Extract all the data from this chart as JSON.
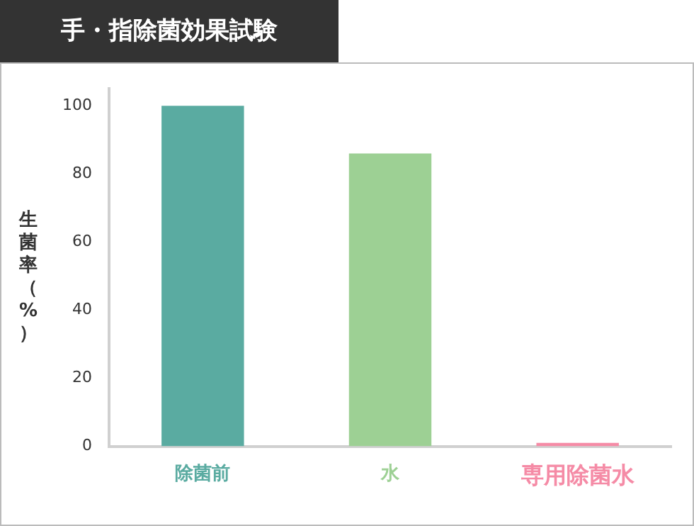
{
  "chart_data": {
    "type": "bar",
    "title": "手・指除菌効果試験",
    "ylabel": "生菌率（%）",
    "categories": [
      "除菌前",
      "水",
      "専用除菌水"
    ],
    "values": [
      100,
      86,
      1
    ],
    "colors": [
      "#5aaba1",
      "#9dd094",
      "#f58ba6"
    ],
    "ylim": [
      0,
      105
    ],
    "yticks": [
      0,
      20,
      40,
      60,
      80,
      100
    ]
  }
}
